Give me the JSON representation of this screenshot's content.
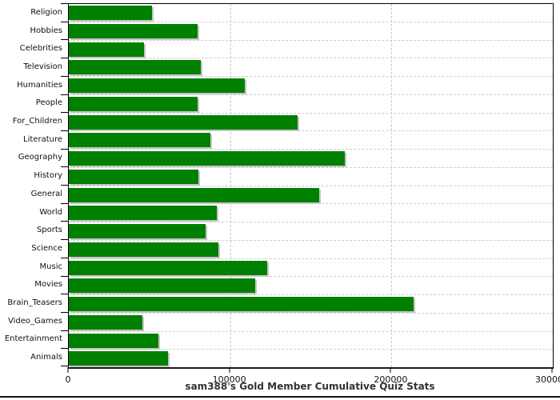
{
  "chart_data": {
    "type": "bar",
    "orientation": "horizontal",
    "title": "sam388's Gold Member Cumulative Quiz Stats",
    "xlabel": "",
    "ylabel": "",
    "categories": [
      "Religion",
      "Hobbies",
      "Celebrities",
      "Television",
      "Humanities",
      "People",
      "For_Children",
      "Literature",
      "Geography",
      "History",
      "General",
      "World",
      "Sports",
      "Science",
      "Music",
      "Movies",
      "Brain_Teasers",
      "Video_Games",
      "Entertainment",
      "Animals"
    ],
    "values": [
      51500,
      80000,
      46500,
      82000,
      109000,
      80000,
      142000,
      88000,
      171000,
      80500,
      155000,
      91500,
      85000,
      92500,
      123000,
      115500,
      213500,
      45500,
      55500,
      61500
    ],
    "xlim": [
      0,
      300000
    ],
    "x_ticks": [
      0,
      100000,
      200000,
      300000
    ],
    "x_tick_labels": [
      "0",
      "100000",
      "200000",
      "300000"
    ],
    "grid": "dashed-horizontal-and-vertical",
    "legend": "none",
    "bar_color": "#008000",
    "bar_shadow_color": "#c6c6c6",
    "axis_color": "#000000",
    "gridline_color": "#c8c8c8"
  }
}
